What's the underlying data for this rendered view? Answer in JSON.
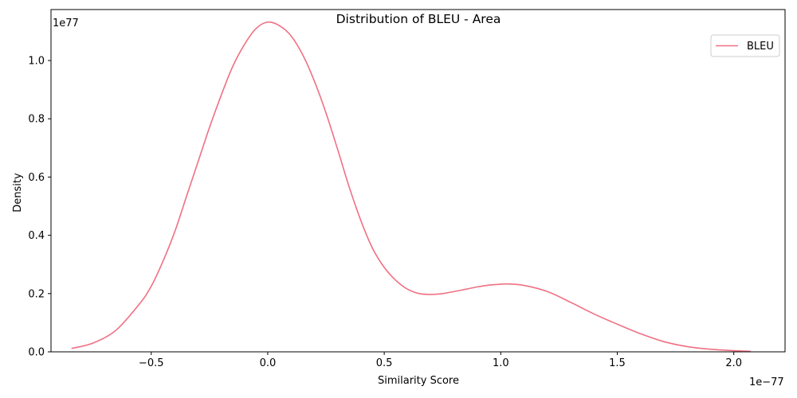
{
  "chart_data": {
    "type": "line",
    "title": "Distribution of BLEU - Area",
    "xlabel": "Similarity Score",
    "ylabel": "Density",
    "x_offset_text": "1e−77",
    "y_offset_text": "1e77",
    "xlim": [
      -0.93,
      2.22
    ],
    "ylim": [
      0,
      1.175
    ],
    "x_ticks": [
      -0.5,
      0.0,
      0.5,
      1.0,
      1.5,
      2.0
    ],
    "x_tick_labels": [
      "−0.5",
      "0.0",
      "0.5",
      "1.0",
      "1.5",
      "2.0"
    ],
    "y_ticks": [
      0.0,
      0.2,
      0.4,
      0.6,
      0.8,
      1.0
    ],
    "y_tick_labels": [
      "0.0",
      "0.2",
      "0.4",
      "0.6",
      "0.8",
      "1.0"
    ],
    "grid": false,
    "legend_position": "top-right",
    "series": [
      {
        "name": "BLEU",
        "color": "#f07083",
        "points": [
          [
            -0.84,
            0.012
          ],
          [
            -0.75,
            0.03
          ],
          [
            -0.65,
            0.075
          ],
          [
            -0.55,
            0.165
          ],
          [
            -0.5,
            0.225
          ],
          [
            -0.45,
            0.31
          ],
          [
            -0.4,
            0.41
          ],
          [
            -0.35,
            0.53
          ],
          [
            -0.3,
            0.65
          ],
          [
            -0.25,
            0.77
          ],
          [
            -0.2,
            0.88
          ],
          [
            -0.15,
            0.98
          ],
          [
            -0.1,
            1.055
          ],
          [
            -0.05,
            1.11
          ],
          [
            0.0,
            1.132
          ],
          [
            0.05,
            1.12
          ],
          [
            0.1,
            1.085
          ],
          [
            0.15,
            1.02
          ],
          [
            0.2,
            0.93
          ],
          [
            0.25,
            0.82
          ],
          [
            0.3,
            0.695
          ],
          [
            0.35,
            0.565
          ],
          [
            0.4,
            0.45
          ],
          [
            0.45,
            0.355
          ],
          [
            0.5,
            0.29
          ],
          [
            0.55,
            0.245
          ],
          [
            0.6,
            0.215
          ],
          [
            0.65,
            0.2
          ],
          [
            0.7,
            0.197
          ],
          [
            0.75,
            0.2
          ],
          [
            0.8,
            0.207
          ],
          [
            0.85,
            0.215
          ],
          [
            0.9,
            0.223
          ],
          [
            0.95,
            0.229
          ],
          [
            1.0,
            0.232
          ],
          [
            1.03,
            0.233
          ],
          [
            1.1,
            0.228
          ],
          [
            1.2,
            0.207
          ],
          [
            1.3,
            0.17
          ],
          [
            1.4,
            0.13
          ],
          [
            1.5,
            0.095
          ],
          [
            1.6,
            0.062
          ],
          [
            1.7,
            0.035
          ],
          [
            1.8,
            0.018
          ],
          [
            1.9,
            0.009
          ],
          [
            2.0,
            0.004
          ],
          [
            2.07,
            0.002
          ]
        ]
      }
    ]
  }
}
